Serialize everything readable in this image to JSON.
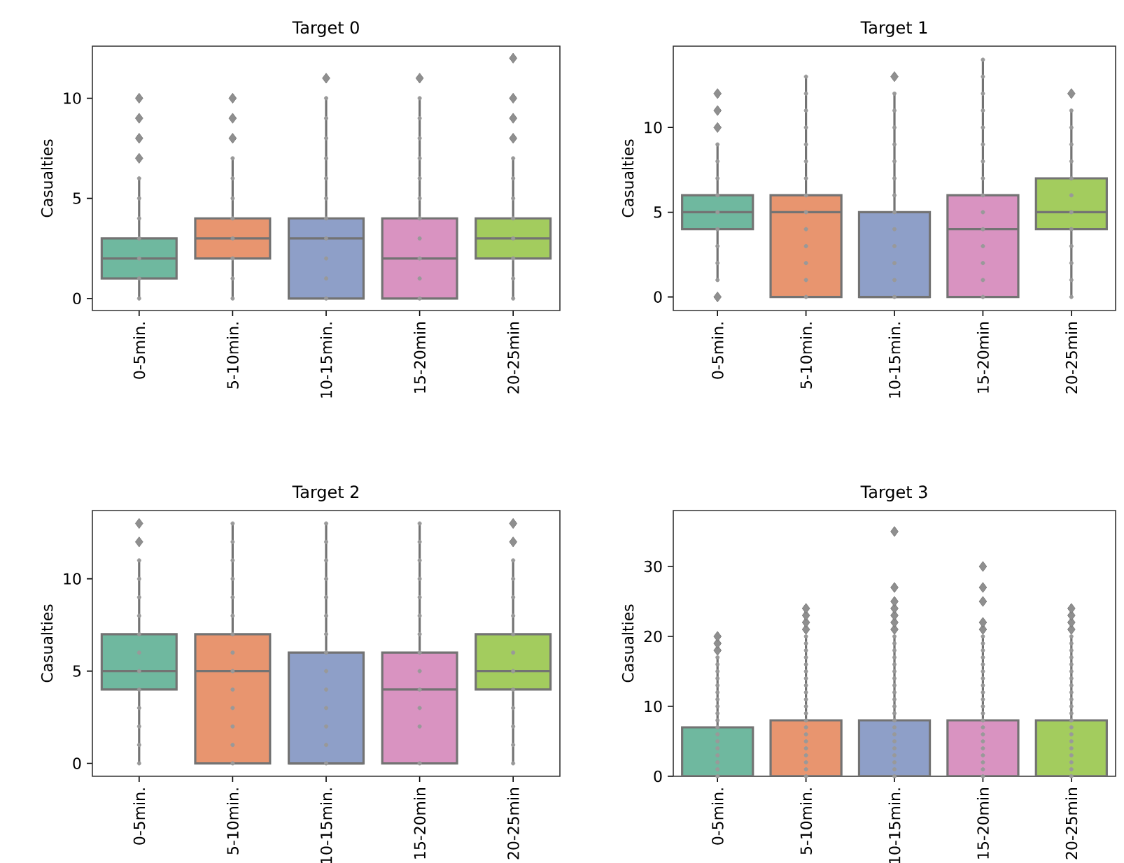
{
  "chart_data": [
    {
      "type": "box",
      "title": "Target 0",
      "ylabel": "Casualties",
      "categories": [
        "0-5min.",
        "5-10min.",
        "10-15min.",
        "15-20min",
        "20-25min"
      ],
      "colors": [
        "#6fb89f",
        "#e8956f",
        "#8e9fc8",
        "#d993c1",
        "#a3cc5e"
      ],
      "ylim": [
        -0.6,
        12.6
      ],
      "yticks": [
        0,
        5,
        10
      ],
      "boxes": [
        {
          "low": 0,
          "q1": 1,
          "median": 2,
          "q3": 3,
          "high": 6,
          "outliers": [
            7,
            8,
            9,
            10
          ]
        },
        {
          "low": 0,
          "q1": 2,
          "median": 3,
          "q3": 4,
          "high": 7,
          "outliers": [
            8,
            9,
            10
          ]
        },
        {
          "low": 0,
          "q1": 0,
          "median": 3,
          "q3": 4,
          "high": 10,
          "outliers": [
            11
          ]
        },
        {
          "low": 0,
          "q1": 0,
          "median": 2,
          "q3": 4,
          "high": 10,
          "outliers": [
            11
          ]
        },
        {
          "low": 0,
          "q1": 2,
          "median": 3,
          "q3": 4,
          "high": 7,
          "outliers": [
            8,
            9,
            10,
            12
          ]
        }
      ],
      "series": [
        {
          "type": "scatter",
          "color": "#999999",
          "marker": "circle",
          "x": [
            "0-5min.",
            "0-5min.",
            "0-5min.",
            "0-5min.",
            "0-5min.",
            "0-5min.",
            "0-5min."
          ],
          "values": [
            0,
            1,
            2,
            3,
            4,
            5,
            6
          ]
        },
        {
          "type": "scatter",
          "color": "#999999",
          "marker": "circle",
          "x": [
            "5-10min.",
            "5-10min.",
            "5-10min.",
            "5-10min.",
            "5-10min.",
            "5-10min.",
            "5-10min.",
            "5-10min."
          ],
          "values": [
            0,
            1,
            2,
            3,
            4,
            5,
            6,
            7
          ]
        },
        {
          "type": "scatter",
          "color": "#999999",
          "marker": "circle",
          "x": [
            "10-15min.",
            "10-15min.",
            "10-15min.",
            "10-15min.",
            "10-15min.",
            "10-15min.",
            "10-15min.",
            "10-15min.",
            "10-15min.",
            "10-15min.",
            "10-15min."
          ],
          "values": [
            0,
            1,
            2,
            3,
            4,
            5,
            6,
            7,
            8,
            9,
            10
          ]
        },
        {
          "type": "scatter",
          "color": "#999999",
          "marker": "circle",
          "x": [
            "15-20min",
            "15-20min",
            "15-20min",
            "15-20min",
            "15-20min",
            "15-20min",
            "15-20min",
            "15-20min",
            "15-20min",
            "15-20min",
            "15-20min"
          ],
          "values": [
            0,
            1,
            2,
            3,
            4,
            5,
            6,
            7,
            8,
            9,
            10
          ]
        },
        {
          "type": "scatter",
          "color": "#999999",
          "marker": "circle",
          "x": [
            "20-25min",
            "20-25min",
            "20-25min",
            "20-25min",
            "20-25min",
            "20-25min",
            "20-25min",
            "20-25min"
          ],
          "values": [
            0,
            1,
            2,
            3,
            4,
            5,
            6,
            7
          ]
        }
      ]
    },
    {
      "type": "box",
      "title": "Target 1",
      "ylabel": "Casualties",
      "categories": [
        "0-5min.",
        "5-10min.",
        "10-15min.",
        "15-20min",
        "20-25min"
      ],
      "colors": [
        "#6fb89f",
        "#e8956f",
        "#8e9fc8",
        "#d993c1",
        "#a3cc5e"
      ],
      "ylim": [
        -0.8,
        14.8
      ],
      "yticks": [
        0,
        5,
        10
      ],
      "boxes": [
        {
          "low": 1,
          "q1": 4,
          "median": 5,
          "q3": 6,
          "high": 9,
          "outliers": [
            0,
            10,
            11,
            12
          ]
        },
        {
          "low": 0,
          "q1": 0,
          "median": 5,
          "q3": 6,
          "high": 13
        },
        {
          "low": 0,
          "q1": 0,
          "median": 0,
          "q3": 5,
          "high": 12,
          "outliers": [
            13
          ]
        },
        {
          "low": 0,
          "q1": 0,
          "median": 4,
          "q3": 6,
          "high": 14
        },
        {
          "low": 0,
          "q1": 4,
          "median": 5,
          "q3": 7,
          "high": 11,
          "outliers": [
            12
          ]
        }
      ],
      "series": [
        {
          "type": "scatter",
          "color": "#999999",
          "marker": "circle",
          "x": [
            "0-5min.",
            "0-5min.",
            "0-5min.",
            "0-5min.",
            "0-5min.",
            "0-5min.",
            "0-5min.",
            "0-5min.",
            "0-5min."
          ],
          "values": [
            1,
            2,
            3,
            4,
            5,
            6,
            7,
            8,
            9
          ]
        },
        {
          "type": "scatter",
          "color": "#999999",
          "marker": "circle",
          "x": [
            "5-10min.",
            "5-10min.",
            "5-10min.",
            "5-10min.",
            "5-10min.",
            "5-10min.",
            "5-10min.",
            "5-10min.",
            "5-10min.",
            "5-10min.",
            "5-10min.",
            "5-10min.",
            "5-10min.",
            "5-10min."
          ],
          "values": [
            0,
            1,
            2,
            3,
            4,
            5,
            6,
            7,
            8,
            9,
            10,
            11,
            12,
            13
          ]
        },
        {
          "type": "scatter",
          "color": "#999999",
          "marker": "circle",
          "x": [
            "10-15min.",
            "10-15min.",
            "10-15min.",
            "10-15min.",
            "10-15min.",
            "10-15min.",
            "10-15min.",
            "10-15min.",
            "10-15min.",
            "10-15min.",
            "10-15min.",
            "10-15min.",
            "10-15min."
          ],
          "values": [
            0,
            1,
            2,
            3,
            4,
            5,
            6,
            7,
            8,
            9,
            10,
            11,
            12
          ]
        },
        {
          "type": "scatter",
          "color": "#999999",
          "marker": "circle",
          "x": [
            "15-20min",
            "15-20min",
            "15-20min",
            "15-20min",
            "15-20min",
            "15-20min",
            "15-20min",
            "15-20min",
            "15-20min",
            "15-20min",
            "15-20min",
            "15-20min",
            "15-20min",
            "15-20min",
            "15-20min"
          ],
          "values": [
            0,
            1,
            2,
            3,
            4,
            5,
            6,
            7,
            8,
            9,
            10,
            11,
            12,
            13,
            14
          ]
        },
        {
          "type": "scatter",
          "color": "#999999",
          "marker": "circle",
          "x": [
            "20-25min",
            "20-25min",
            "20-25min",
            "20-25min",
            "20-25min",
            "20-25min",
            "20-25min",
            "20-25min",
            "20-25min",
            "20-25min",
            "20-25min",
            "20-25min"
          ],
          "values": [
            0,
            1,
            2,
            3,
            4,
            5,
            6,
            7,
            8,
            9,
            10,
            11
          ]
        }
      ]
    },
    {
      "type": "box",
      "title": "Target 2",
      "ylabel": "Casualties",
      "categories": [
        "0-5min.",
        "5-10min.",
        "10-15min.",
        "15-20min",
        "20-25min"
      ],
      "colors": [
        "#6fb89f",
        "#e8956f",
        "#8e9fc8",
        "#d993c1",
        "#a3cc5e"
      ],
      "ylim": [
        -0.7,
        13.7
      ],
      "yticks": [
        0,
        5,
        10
      ],
      "boxes": [
        {
          "low": 0,
          "q1": 4,
          "median": 5,
          "q3": 7,
          "high": 11,
          "outliers": [
            12,
            13
          ]
        },
        {
          "low": 0,
          "q1": 0,
          "median": 5,
          "q3": 7,
          "high": 13
        },
        {
          "low": 0,
          "q1": 0,
          "median": 0,
          "q3": 6,
          "high": 13
        },
        {
          "low": 0,
          "q1": 0,
          "median": 4,
          "q3": 6,
          "high": 13
        },
        {
          "low": 0,
          "q1": 4,
          "median": 5,
          "q3": 7,
          "high": 11,
          "outliers": [
            12,
            13
          ]
        }
      ],
      "series": [
        {
          "type": "scatter",
          "color": "#999999",
          "marker": "circle",
          "x": [
            "0-5min.",
            "0-5min.",
            "0-5min.",
            "0-5min.",
            "0-5min.",
            "0-5min.",
            "0-5min.",
            "0-5min.",
            "0-5min.",
            "0-5min.",
            "0-5min.",
            "0-5min."
          ],
          "values": [
            0,
            1,
            2,
            3,
            4,
            5,
            6,
            7,
            8,
            9,
            10,
            11
          ]
        },
        {
          "type": "scatter",
          "color": "#999999",
          "marker": "circle",
          "x": [
            "5-10min.",
            "5-10min.",
            "5-10min.",
            "5-10min.",
            "5-10min.",
            "5-10min.",
            "5-10min.",
            "5-10min.",
            "5-10min.",
            "5-10min.",
            "5-10min.",
            "5-10min.",
            "5-10min.",
            "5-10min."
          ],
          "values": [
            0,
            1,
            2,
            3,
            4,
            5,
            6,
            7,
            8,
            9,
            10,
            11,
            12,
            13
          ]
        },
        {
          "type": "scatter",
          "color": "#999999",
          "marker": "circle",
          "x": [
            "10-15min.",
            "10-15min.",
            "10-15min.",
            "10-15min.",
            "10-15min.",
            "10-15min.",
            "10-15min.",
            "10-15min.",
            "10-15min.",
            "10-15min.",
            "10-15min.",
            "10-15min.",
            "10-15min.",
            "10-15min."
          ],
          "values": [
            0,
            1,
            2,
            3,
            4,
            5,
            6,
            7,
            8,
            9,
            10,
            11,
            12,
            13
          ]
        },
        {
          "type": "scatter",
          "color": "#999999",
          "marker": "circle",
          "x": [
            "15-20min",
            "15-20min",
            "15-20min",
            "15-20min",
            "15-20min",
            "15-20min",
            "15-20min",
            "15-20min",
            "15-20min",
            "15-20min",
            "15-20min",
            "15-20min",
            "15-20min"
          ],
          "values": [
            0,
            2,
            3,
            4,
            5,
            6,
            7,
            8,
            9,
            10,
            11,
            12,
            13
          ]
        },
        {
          "type": "scatter",
          "color": "#999999",
          "marker": "circle",
          "x": [
            "20-25min",
            "20-25min",
            "20-25min",
            "20-25min",
            "20-25min",
            "20-25min",
            "20-25min",
            "20-25min",
            "20-25min",
            "20-25min",
            "20-25min",
            "20-25min"
          ],
          "values": [
            0,
            1,
            2,
            3,
            4,
            5,
            6,
            7,
            8,
            9,
            10,
            11
          ]
        }
      ]
    },
    {
      "type": "box",
      "title": "Target 3",
      "ylabel": "Casualties",
      "categories": [
        "0-5min.",
        "5-10min.",
        "10-15min.",
        "15-20min",
        "20-25min"
      ],
      "colors": [
        "#6fb89f",
        "#e8956f",
        "#8e9fc8",
        "#d993c1",
        "#a3cc5e"
      ],
      "ylim": [
        0,
        38
      ],
      "yticks": [
        0,
        10,
        20,
        30
      ],
      "boxes": [
        {
          "low": 0,
          "q1": 0,
          "median": 0,
          "q3": 7,
          "high": 17,
          "outliers": [
            18,
            19,
            20
          ]
        },
        {
          "low": 0,
          "q1": 0,
          "median": 0,
          "q3": 8,
          "high": 20,
          "outliers": [
            21,
            22,
            23,
            24
          ]
        },
        {
          "low": 0,
          "q1": 0,
          "median": 0,
          "q3": 8,
          "high": 20,
          "outliers": [
            21,
            22,
            23,
            24,
            25,
            27,
            35
          ]
        },
        {
          "low": 0,
          "q1": 0,
          "median": 0,
          "q3": 8,
          "high": 20,
          "outliers": [
            21,
            22,
            25,
            27,
            30
          ]
        },
        {
          "low": 0,
          "q1": 0,
          "median": 0,
          "q3": 8,
          "high": 20,
          "outliers": [
            21,
            22,
            23,
            24
          ]
        }
      ],
      "series": [
        {
          "type": "scatter",
          "color": "#999999",
          "marker": "circle",
          "x": [
            "0-5min.",
            "0-5min.",
            "0-5min.",
            "0-5min.",
            "0-5min.",
            "0-5min.",
            "0-5min.",
            "0-5min.",
            "0-5min.",
            "0-5min.",
            "0-5min.",
            "0-5min.",
            "0-5min.",
            "0-5min.",
            "0-5min.",
            "0-5min.",
            "0-5min.",
            "0-5min."
          ],
          "values": [
            0,
            1,
            2,
            3,
            4,
            5,
            6,
            7,
            8,
            9,
            10,
            11,
            12,
            13,
            14,
            15,
            16,
            17
          ]
        },
        {
          "type": "scatter",
          "color": "#999999",
          "marker": "circle",
          "x": [
            "5-10min.",
            "5-10min.",
            "5-10min.",
            "5-10min.",
            "5-10min.",
            "5-10min.",
            "5-10min.",
            "5-10min.",
            "5-10min.",
            "5-10min.",
            "5-10min.",
            "5-10min.",
            "5-10min.",
            "5-10min.",
            "5-10min.",
            "5-10min.",
            "5-10min.",
            "5-10min.",
            "5-10min.",
            "5-10min.",
            "5-10min."
          ],
          "values": [
            0,
            1,
            2,
            3,
            4,
            5,
            6,
            7,
            8,
            9,
            10,
            11,
            12,
            13,
            14,
            15,
            16,
            17,
            18,
            19,
            20
          ]
        },
        {
          "type": "scatter",
          "color": "#999999",
          "marker": "circle",
          "x": [
            "10-15min.",
            "10-15min.",
            "10-15min.",
            "10-15min.",
            "10-15min.",
            "10-15min.",
            "10-15min.",
            "10-15min.",
            "10-15min.",
            "10-15min.",
            "10-15min.",
            "10-15min.",
            "10-15min.",
            "10-15min.",
            "10-15min.",
            "10-15min.",
            "10-15min.",
            "10-15min.",
            "10-15min.",
            "10-15min.",
            "10-15min."
          ],
          "values": [
            0,
            1,
            2,
            3,
            4,
            5,
            6,
            7,
            8,
            9,
            10,
            11,
            12,
            13,
            14,
            15,
            16,
            17,
            18,
            19,
            20
          ]
        },
        {
          "type": "scatter",
          "color": "#999999",
          "marker": "circle",
          "x": [
            "15-20min",
            "15-20min",
            "15-20min",
            "15-20min",
            "15-20min",
            "15-20min",
            "15-20min",
            "15-20min",
            "15-20min",
            "15-20min",
            "15-20min",
            "15-20min",
            "15-20min",
            "15-20min",
            "15-20min",
            "15-20min",
            "15-20min",
            "15-20min",
            "15-20min",
            "15-20min",
            "15-20min"
          ],
          "values": [
            0,
            1,
            2,
            3,
            4,
            5,
            6,
            7,
            8,
            9,
            10,
            11,
            12,
            13,
            14,
            15,
            16,
            17,
            18,
            19,
            20
          ]
        },
        {
          "type": "scatter",
          "color": "#999999",
          "marker": "circle",
          "x": [
            "20-25min",
            "20-25min",
            "20-25min",
            "20-25min",
            "20-25min",
            "20-25min",
            "20-25min",
            "20-25min",
            "20-25min",
            "20-25min",
            "20-25min",
            "20-25min",
            "20-25min",
            "20-25min",
            "20-25min",
            "20-25min",
            "20-25min",
            "20-25min",
            "20-25min",
            "20-25min",
            "20-25min"
          ],
          "values": [
            0,
            1,
            2,
            3,
            4,
            5,
            6,
            7,
            8,
            9,
            10,
            11,
            12,
            13,
            14,
            15,
            16,
            17,
            18,
            19,
            20
          ]
        }
      ]
    }
  ]
}
